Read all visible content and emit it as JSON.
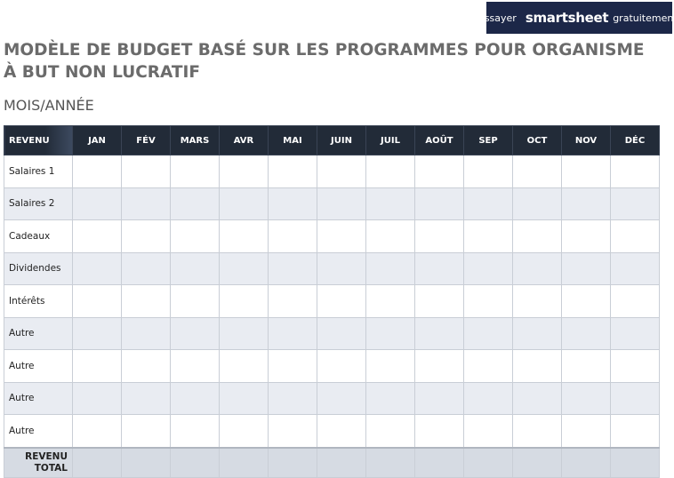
{
  "banner": {
    "prefix": "Essayer",
    "brand": "smartsheet",
    "suffix": "gratuitement."
  },
  "header": {
    "title": "MODÈLE DE BUDGET BASÉ SUR LES PROGRAMMES POUR ORGANISME À BUT NON LUCRATIF",
    "subtitle": "MOIS/ANNÉE"
  },
  "table": {
    "columns": [
      "REVENU",
      "JAN",
      "FÉV",
      "MARS",
      "AVR",
      "MAI",
      "JUIN",
      "JUIL",
      "AOÛT",
      "SEP",
      "OCT",
      "NOV",
      "DÉC"
    ],
    "rows": [
      "Salaires 1",
      "Salaires 2",
      "Cadeaux",
      "Dividendes",
      "Intérêts",
      "Autre",
      "Autre",
      "Autre",
      "Autre"
    ],
    "total": "REVENU TOTAL"
  }
}
